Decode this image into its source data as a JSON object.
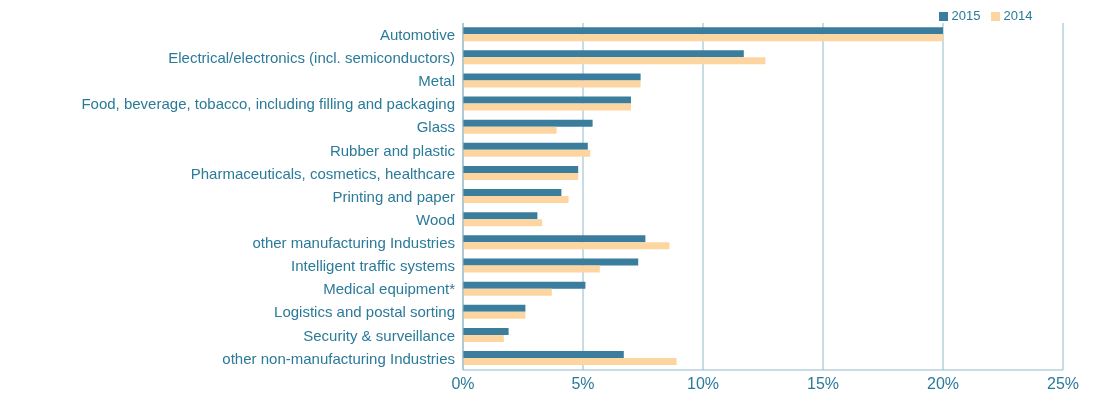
{
  "chart_data": {
    "type": "bar",
    "orientation": "horizontal",
    "categories": [
      "Automotive",
      "Electrical/electronics (incl. semiconductors)",
      "Metal",
      "Food, beverage, tobacco, including filling and packaging",
      "Glass",
      "Rubber and plastic",
      "Pharmaceuticals, cosmetics, healthcare",
      "Printing and paper",
      "Wood",
      "other manufacturing Industries",
      "Intelligent traffic systems",
      "Medical equipment*",
      "Logistics and postal sorting",
      "Security & surveillance",
      "other non-manufacturing Industries"
    ],
    "series": [
      {
        "name": "2015",
        "color": "#3a7d9c",
        "values": [
          20,
          11.7,
          7.4,
          7.0,
          5.4,
          5.2,
          4.8,
          4.1,
          3.1,
          7.6,
          7.3,
          5.1,
          2.6,
          1.9,
          6.7
        ]
      },
      {
        "name": "2014",
        "color": "#fdd5a0",
        "values": [
          20,
          12.6,
          7.4,
          7.0,
          3.9,
          5.3,
          4.8,
          4.4,
          3.3,
          8.6,
          5.7,
          3.7,
          2.6,
          1.7,
          8.9
        ]
      }
    ],
    "xlim": [
      0,
      25
    ],
    "xticks": [
      {
        "value": 0,
        "label": "0%"
      },
      {
        "value": 5,
        "label": "5%"
      },
      {
        "value": 10,
        "label": "10%"
      },
      {
        "value": 15,
        "label": "15%"
      },
      {
        "value": 20,
        "label": "20%"
      },
      {
        "value": 25,
        "label": "25%"
      }
    ],
    "grid": "x",
    "legend": "top"
  }
}
